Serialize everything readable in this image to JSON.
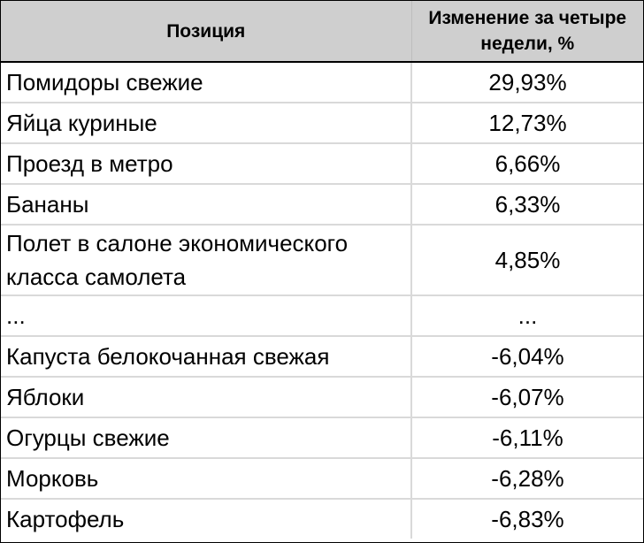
{
  "chart_data": {
    "type": "table",
    "columns": [
      "Позиция",
      "Изменение за четыре недели, %"
    ],
    "rows": [
      {
        "name": "Помидоры свежие",
        "value": "29,93%"
      },
      {
        "name": "Яйца куриные",
        "value": "12,73%"
      },
      {
        "name": "Проезд в метро",
        "value": "6,66%"
      },
      {
        "name": "Бананы",
        "value": "6,33%"
      },
      {
        "name": "Полет в салоне экономического класса самолета",
        "value": "4,85%"
      },
      {
        "name": "...",
        "value": "..."
      },
      {
        "name": "Капуста белокочанная свежая",
        "value": "-6,04%"
      },
      {
        "name": "Яблоки",
        "value": "-6,07%"
      },
      {
        "name": "Огурцы свежие",
        "value": "-6,11%"
      },
      {
        "name": "Морковь",
        "value": "-6,28%"
      },
      {
        "name": "Картофель",
        "value": "-6,83%"
      }
    ]
  }
}
